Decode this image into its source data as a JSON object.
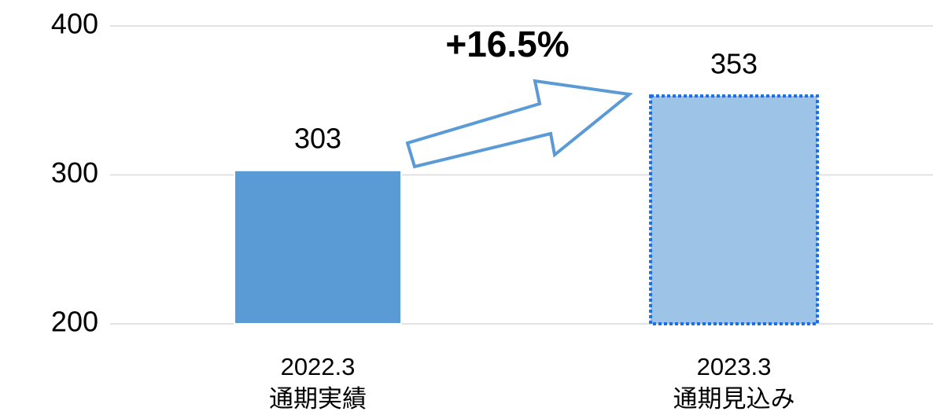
{
  "chart_data": {
    "type": "bar",
    "categories": [
      "2022.3\n通期実績",
      "2023.3\n通期見込み"
    ],
    "values": [
      303,
      353
    ],
    "colors": [
      "#5b9bd5",
      "#9dc3e6"
    ],
    "edge_colors": [
      "#ffffff",
      "#1a6ee8"
    ],
    "edge_styles": [
      "solid",
      "dotted"
    ],
    "ylim": [
      200,
      400
    ],
    "yticks": [
      200,
      300,
      400
    ],
    "grid": true,
    "annotation": "+16.5%",
    "annotation_color": "#ed7d31"
  }
}
